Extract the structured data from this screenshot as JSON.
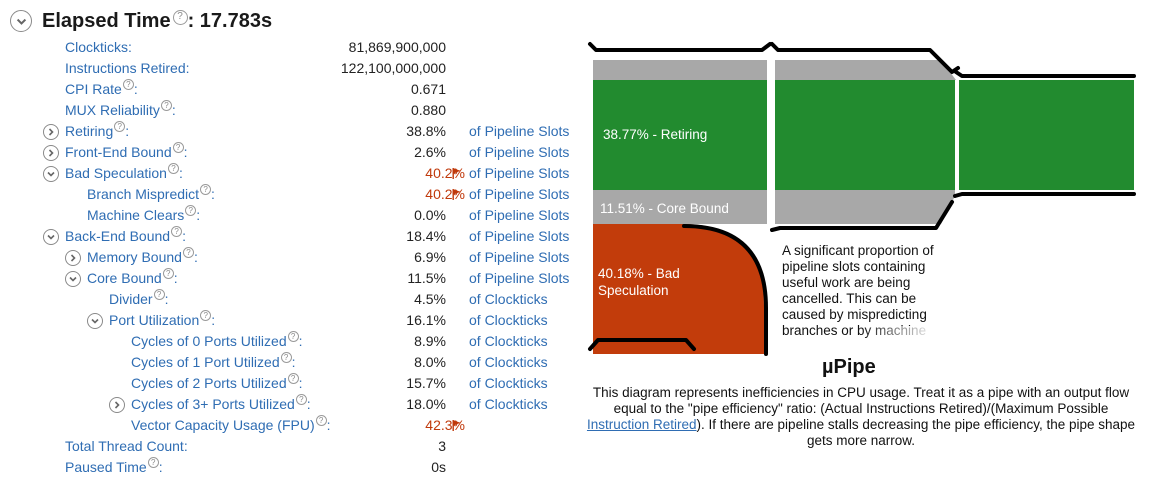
{
  "header": {
    "title": "Elapsed Time",
    "colon_value": ": 17.783s",
    "help_glyph": "?"
  },
  "metrics": [
    {
      "name": "Clockticks:",
      "value": "81,869,900,000",
      "unit": "",
      "level": 0,
      "expander": "none",
      "help": false,
      "warn": false
    },
    {
      "name": "Instructions Retired:",
      "value": "122,100,000,000",
      "unit": "",
      "level": 0,
      "expander": "none",
      "help": false,
      "warn": false
    },
    {
      "name": "CPI Rate",
      "suffix": ":",
      "value": "0.671",
      "unit": "",
      "level": 0,
      "expander": "none",
      "help": true,
      "warn": false
    },
    {
      "name": "MUX Reliability",
      "suffix": ":",
      "value": "0.880",
      "unit": "",
      "level": 0,
      "expander": "none",
      "help": true,
      "warn": false
    },
    {
      "name": "Retiring",
      "suffix": ":",
      "value": "38.8%",
      "unit": "of Pipeline Slots",
      "level": 0,
      "expander": "collapsed",
      "help": true,
      "warn": false
    },
    {
      "name": "Front-End Bound",
      "suffix": ":",
      "value": "2.6%",
      "unit": "of Pipeline Slots",
      "level": 0,
      "expander": "collapsed",
      "help": true,
      "warn": false
    },
    {
      "name": "Bad Speculation",
      "suffix": ":",
      "value": "40.2%",
      "unit": "of Pipeline Slots",
      "level": 0,
      "expander": "expanded",
      "help": true,
      "warn": true
    },
    {
      "name": "Branch Mispredict",
      "suffix": ":",
      "value": "40.2%",
      "unit": "of Pipeline Slots",
      "level": 1,
      "expander": "none",
      "help": true,
      "warn": true
    },
    {
      "name": "Machine Clears",
      "suffix": ":",
      "value": "0.0%",
      "unit": "of Pipeline Slots",
      "level": 1,
      "expander": "none",
      "help": true,
      "warn": false
    },
    {
      "name": "Back-End Bound",
      "suffix": ":",
      "value": "18.4%",
      "unit": "of Pipeline Slots",
      "level": 0,
      "expander": "expanded",
      "help": true,
      "warn": false
    },
    {
      "name": "Memory Bound",
      "suffix": ":",
      "value": "6.9%",
      "unit": "of Pipeline Slots",
      "level": 1,
      "expander": "collapsed",
      "help": true,
      "warn": false
    },
    {
      "name": "Core Bound",
      "suffix": ":",
      "value": "11.5%",
      "unit": "of Pipeline Slots",
      "level": 1,
      "expander": "expanded",
      "help": true,
      "warn": false
    },
    {
      "name": "Divider",
      "suffix": ":",
      "value": "4.5%",
      "unit": "of Clockticks",
      "level": 2,
      "expander": "none",
      "help": true,
      "warn": false
    },
    {
      "name": "Port Utilization",
      "suffix": ":",
      "value": "16.1%",
      "unit": "of Clockticks",
      "level": 2,
      "expander": "expanded",
      "help": true,
      "warn": false
    },
    {
      "name": "Cycles of 0 Ports Utilized",
      "suffix": ":",
      "value": "8.9%",
      "unit": "of Clockticks",
      "level": 3,
      "expander": "none",
      "help": true,
      "warn": false
    },
    {
      "name": "Cycles of 1 Port Utilized",
      "suffix": ":",
      "value": "8.0%",
      "unit": "of Clockticks",
      "level": 3,
      "expander": "none",
      "help": true,
      "warn": false
    },
    {
      "name": "Cycles of 2 Ports Utilized",
      "suffix": ":",
      "value": "15.7%",
      "unit": "of Clockticks",
      "level": 3,
      "expander": "none",
      "help": true,
      "warn": false
    },
    {
      "name": "Cycles of 3+ Ports Utilized",
      "suffix": ":",
      "value": "18.0%",
      "unit": "of Clockticks",
      "level": 3,
      "expander": "collapsed",
      "help": true,
      "warn": false
    },
    {
      "name": "Vector Capacity Usage (FPU)",
      "suffix": ":",
      "value": "42.3%",
      "unit": "",
      "level": 3,
      "expander": "none",
      "help": true,
      "warn": true
    },
    {
      "name": "Total Thread Count:",
      "value": "3",
      "unit": "",
      "level": 0,
      "expander": "none",
      "help": false,
      "warn": false
    },
    {
      "name": "Paused Time",
      "suffix": ":",
      "value": "0s",
      "unit": "",
      "level": 0,
      "expander": "none",
      "help": true,
      "warn": false
    }
  ],
  "diagram": {
    "retiring_label": "38.77% - Retiring",
    "core_bound_label": "11.51% - Core Bound",
    "bad_spec_label_line1": "40.18% - Bad",
    "bad_spec_label_line2": "Speculation",
    "colors": {
      "retiring": "#228b2f",
      "stall": "#a8a8a8",
      "bad_speculation": "#c23c0b",
      "outline": "#000000"
    },
    "note": "A significant proportion of pipeline slots containing useful work are being cancelled. This can be caused by mispredicting branches or by machine"
  },
  "upipe": {
    "title": "µPipe",
    "desc_before": "This diagram represents inefficiencies in CPU usage. Treat it as a pipe with an output flow equal to the \"pipe efficiency\" ratio: (Actual Instructions Retired)/(Maximum Possible ",
    "desc_link": "Instruction Retired",
    "desc_after": "). If there are pipeline stalls decreasing the pipe efficiency, the pipe shape gets more narrow."
  }
}
